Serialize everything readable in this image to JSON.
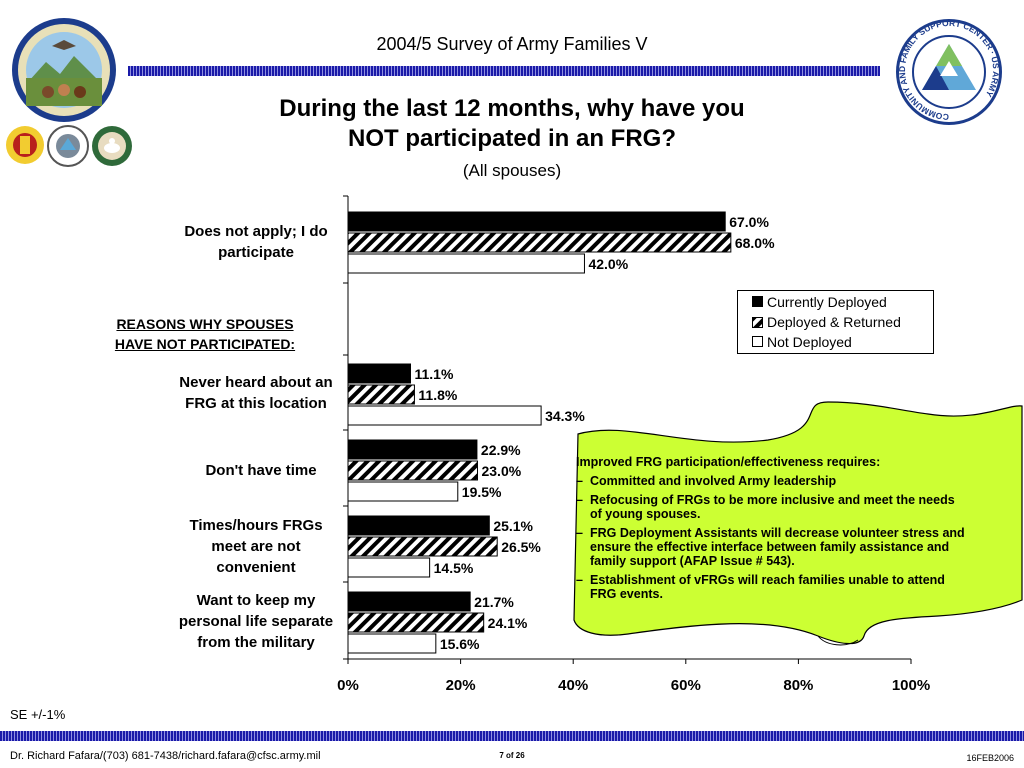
{
  "header": {
    "survey_title": "2004/5 Survey of Army Families V"
  },
  "titles": {
    "main_line1": "During the last 12 months, why have you",
    "main_line2": "NOT participated in an FRG?",
    "subtitle": "(All spouses)"
  },
  "reasons_heading": {
    "line1": "REASONS WHY SPOUSES",
    "line2": "HAVE NOT PARTICIPATED:"
  },
  "logos": {
    "csf_badge": {
      "text": "COMMUNITY AND FAMILY SUPPORT CENTER · US ARMY"
    }
  },
  "chart_data": {
    "type": "bar",
    "orientation": "horizontal",
    "categories": [
      [
        "Does not apply; I do",
        "participate"
      ],
      [
        "Never heard about an",
        "FRG at this location"
      ],
      [
        "Don't have time"
      ],
      [
        "Times/hours FRGs",
        "meet are not",
        "convenient"
      ],
      [
        "Want to keep my",
        "personal life separate",
        "from the military"
      ]
    ],
    "series": [
      {
        "name": "Currently Deployed",
        "values": [
          67.0,
          11.1,
          22.9,
          25.1,
          21.7
        ],
        "labels": [
          "67.0%",
          "11.1%",
          "22.9%",
          "25.1%",
          "21.7%"
        ],
        "fill": "#000000"
      },
      {
        "name": "Deployed & Returned",
        "values": [
          68.0,
          11.8,
          23.0,
          26.5,
          24.1
        ],
        "labels": [
          "68.0%",
          "11.8%",
          "23.0%",
          "26.5%",
          "24.1%"
        ],
        "fill": "hatch"
      },
      {
        "name": "Not Deployed",
        "values": [
          42.0,
          34.3,
          19.5,
          14.5,
          15.6
        ],
        "labels": [
          "42.0%",
          "34.3%",
          "19.5%",
          "14.5%",
          "15.6%"
        ],
        "fill": "#ffffff"
      }
    ],
    "xlim": [
      0,
      100
    ],
    "xticks": [
      "0%",
      "20%",
      "40%",
      "60%",
      "80%",
      "100%"
    ],
    "legend": {
      "placement": "right",
      "entries": [
        "Currently Deployed",
        "Deployed & Returned",
        "Not Deployed"
      ]
    },
    "grid": false
  },
  "callout": {
    "heading": "Improved FRG participation/effectiveness requires:",
    "bullets": [
      [
        "Committed and involved Army leadership"
      ],
      [
        "Refocusing of FRGs to be more inclusive and meet the needs",
        "of young spouses."
      ],
      [
        "FRG Deployment Assistants will decrease volunteer stress and",
        "ensure the effective interface between family assistance and",
        "family support (AFAP Issue # 543)."
      ],
      [
        "Establishment of vFRGs will reach families unable to attend",
        "FRG events."
      ]
    ],
    "bullet_glyph": "–",
    "fill_color": "#ccff33"
  },
  "se_note": "SE +/-1%",
  "footer": {
    "contact": "Dr. Richard Fafara/(703) 681-7438/richard.fafara@cfsc.army.mil",
    "page": "7 of 26",
    "date": "16FEB2006"
  }
}
